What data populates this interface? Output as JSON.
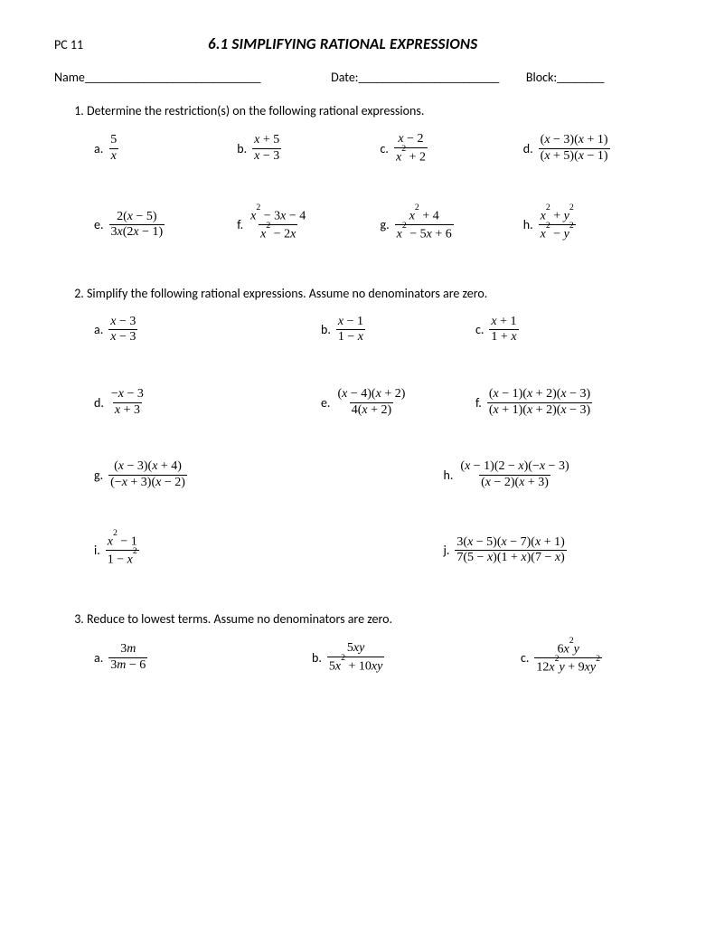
{
  "course": "PC 11",
  "title": "6.1 SIMPLIFYING RATIONAL EXPRESSIONS",
  "labels": {
    "name": "Name",
    "date": "Date:",
    "block": "Block:"
  },
  "q1": {
    "prompt": "Determine the restriction(s) on the following rational expressions.",
    "r1": {
      "a": {
        "num": "<span class='n'>5</span>",
        "den": "x"
      },
      "b": {
        "num": "x <span class='n'>+ 5</span>",
        "den": "x <span class='n'>− 3</span>"
      },
      "c": {
        "num": "x <span class='n'>− 2</span>",
        "den": "x<sup>2</sup> <span class='n'>+ 2</span>"
      },
      "d": {
        "num": "<span class='n'>(</span>x <span class='n'>− 3)(</span>x <span class='n'>+ 1)</span>",
        "den": "<span class='n'>(</span>x <span class='n'>+ 5)(</span>x <span class='n'>− 1)</span>"
      }
    },
    "r2": {
      "e": {
        "num": "<span class='n'>2(</span>x <span class='n'>− 5)</span>",
        "den": "<span class='n'>3</span>x<span class='n'>(2</span>x <span class='n'>− 1)</span>"
      },
      "f": {
        "num": "x<sup>2</sup> <span class='n'>− 3</span>x <span class='n'>− 4</span>",
        "den": "x<sup>2</sup> <span class='n'>− 2</span>x"
      },
      "g": {
        "num": "x<sup>2</sup> <span class='n'>+ 4</span>",
        "den": "x<sup>2</sup> <span class='n'>− 5</span>x <span class='n'>+ 6</span>"
      },
      "h": {
        "num": "x<sup>2</sup> <span class='n'>+</span> y<sup>2</sup>",
        "den": "x<sup>2</sup> <span class='n'>−</span> y<sup>2</sup>"
      }
    }
  },
  "q2": {
    "prompt": "Simplify the following rational expressions.  Assume no denominators are zero.",
    "r1": {
      "a": {
        "num": "x <span class='n'>− 3</span>",
        "den": "x <span class='n'>− 3</span>"
      },
      "b": {
        "num": "x <span class='n'>− 1</span>",
        "den": "<span class='n'>1 −</span> x"
      },
      "c": {
        "num": "x <span class='n'>+ 1</span>",
        "den": "<span class='n'>1 +</span> x"
      }
    },
    "r2": {
      "d": {
        "num": "<span class='n'>−</span>x <span class='n'>− 3</span>",
        "den": "x <span class='n'>+ 3</span>"
      },
      "e": {
        "num": "<span class='n'>(</span>x <span class='n'>− 4)(</span>x <span class='n'>+ 2)</span>",
        "den": "<span class='n'>4(</span>x <span class='n'>+ 2)</span>"
      },
      "f": {
        "num": "<span class='n'>(</span>x <span class='n'>− 1)(</span>x <span class='n'>+ 2)(</span>x <span class='n'>− 3)</span>",
        "den": "<span class='n'>(</span>x <span class='n'>+ 1)(</span>x <span class='n'>+ 2)(</span>x <span class='n'>− 3)</span>"
      }
    },
    "r3": {
      "g": {
        "num": "<span class='n'>(</span>x <span class='n'>− 3)(</span>x <span class='n'>+ 4)</span>",
        "den": "<span class='n'>(−</span>x <span class='n'>+ 3)(</span>x <span class='n'>− 2)</span>"
      },
      "h": {
        "num": "<span class='n'>(</span>x <span class='n'>− 1)(2 −</span> x<span class='n'>)(−</span>x <span class='n'>− 3)</span>",
        "den": "<span class='n'>(</span>x <span class='n'>− 2)(</span>x <span class='n'>+ 3)</span>"
      }
    },
    "r4": {
      "i": {
        "num": "x<sup>2</sup> <span class='n'>− 1</span>",
        "den": "<span class='n'>1 −</span> x<sup>2</sup>"
      },
      "j": {
        "num": "<span class='n'>3(</span>x <span class='n'>− 5)(</span>x <span class='n'>− 7)(</span>x <span class='n'>+ 1)</span>",
        "den": "<span class='n'>7(5 −</span> x<span class='n'>)(1 +</span> x<span class='n'>)(7 −</span> x<span class='n'>)</span>"
      }
    }
  },
  "q3": {
    "prompt": "Reduce to lowest terms.  Assume no denominators are zero.",
    "r1": {
      "a": {
        "num": "<span class='n'>3</span>m",
        "den": "<span class='n'>3</span>m <span class='n'>− 6</span>"
      },
      "b": {
        "num": "<span class='n'>5</span>xy",
        "den": "<span class='n'>5</span>x<sup>2</sup> <span class='n'>+ 10</span>xy"
      },
      "c": {
        "num": "<span class='n'>6</span>x<sup>2</sup>y",
        "den": "<span class='n'>12</span>x<sup>2</sup>y <span class='n'>+ 9</span>xy<sup>2</sup>"
      }
    }
  },
  "letters": [
    "a.",
    "b.",
    "c.",
    "d.",
    "e.",
    "f.",
    "g.",
    "h.",
    "i.",
    "j."
  ]
}
